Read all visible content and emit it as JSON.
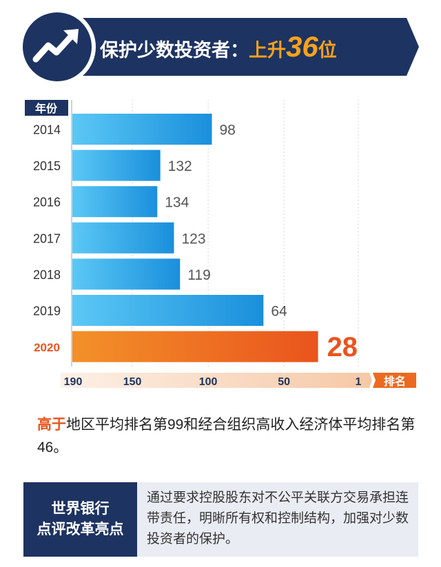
{
  "header": {
    "title_main": "保护少数投资者：",
    "title_highlight": "上升",
    "title_number": "36",
    "title_unit": "位",
    "icon": "trend-up-icon"
  },
  "chart_data": {
    "type": "bar",
    "orientation": "horizontal",
    "y_header": "年份",
    "x_header": "排名",
    "categories": [
      "2014",
      "2015",
      "2016",
      "2017",
      "2018",
      "2019",
      "2020"
    ],
    "values": [
      98,
      132,
      134,
      123,
      119,
      64,
      28
    ],
    "x_ticks": [
      "190",
      "150",
      "100",
      "50",
      "1"
    ],
    "xlim": [
      190,
      1
    ],
    "highlight_category": "2020",
    "colors": {
      "bar": "#29a3e8",
      "highlight": "#ec6a1f",
      "highlight_text": "#e9541d",
      "navy": "#1d3361"
    }
  },
  "summary": {
    "highlight": "高于",
    "text": "地区平均排名第99和经合组织高收入经济体平均排名第46。"
  },
  "reform": {
    "label_line1": "世界银行",
    "label_line2": "点评改革亮点",
    "text": "通过要求控股股东对不公平关联方交易承担连带责任，明晰所有权和控制结构，加强对少数投资者的保护。"
  }
}
